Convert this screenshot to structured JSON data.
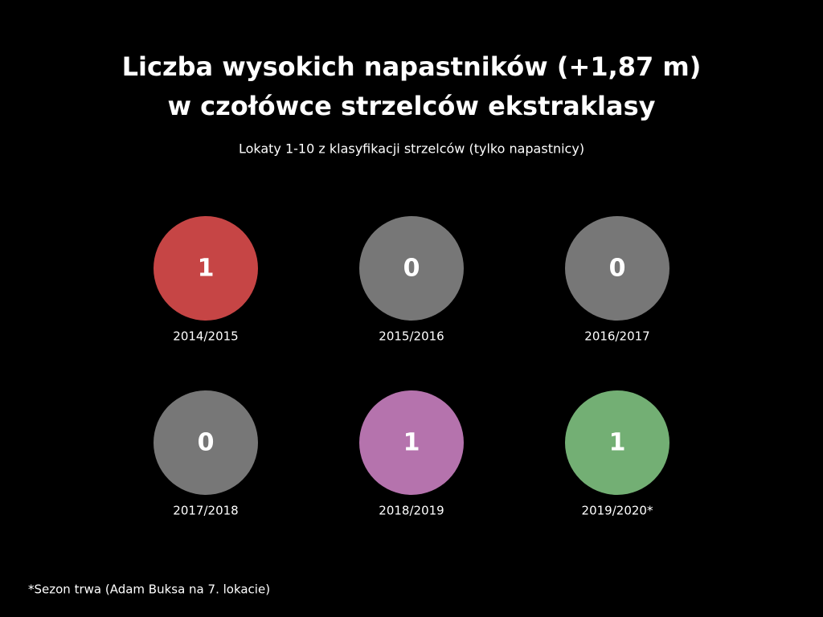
{
  "chart_data": {
    "type": "circle",
    "title": [
      "Liczba wysokich napastników (+1,87 m)",
      "w czołówce strzelców ekstraklasy"
    ],
    "subtitle": "Lokaty 1-10 z klasyfikacji strzelców (tylko napastnicy)",
    "categories": [
      "2014/2015",
      "2015/2016",
      "2016/2017",
      "2017/2018",
      "2018/2019",
      "2019/2020*"
    ],
    "values": [
      1,
      0,
      0,
      0,
      1,
      1
    ],
    "colors": [
      "#c64545",
      "#777777",
      "#777777",
      "#777777",
      "#b573ad",
      "#73af74"
    ],
    "note": "*Sezon trwa (Adam Buksa na 7. lokacie)"
  }
}
